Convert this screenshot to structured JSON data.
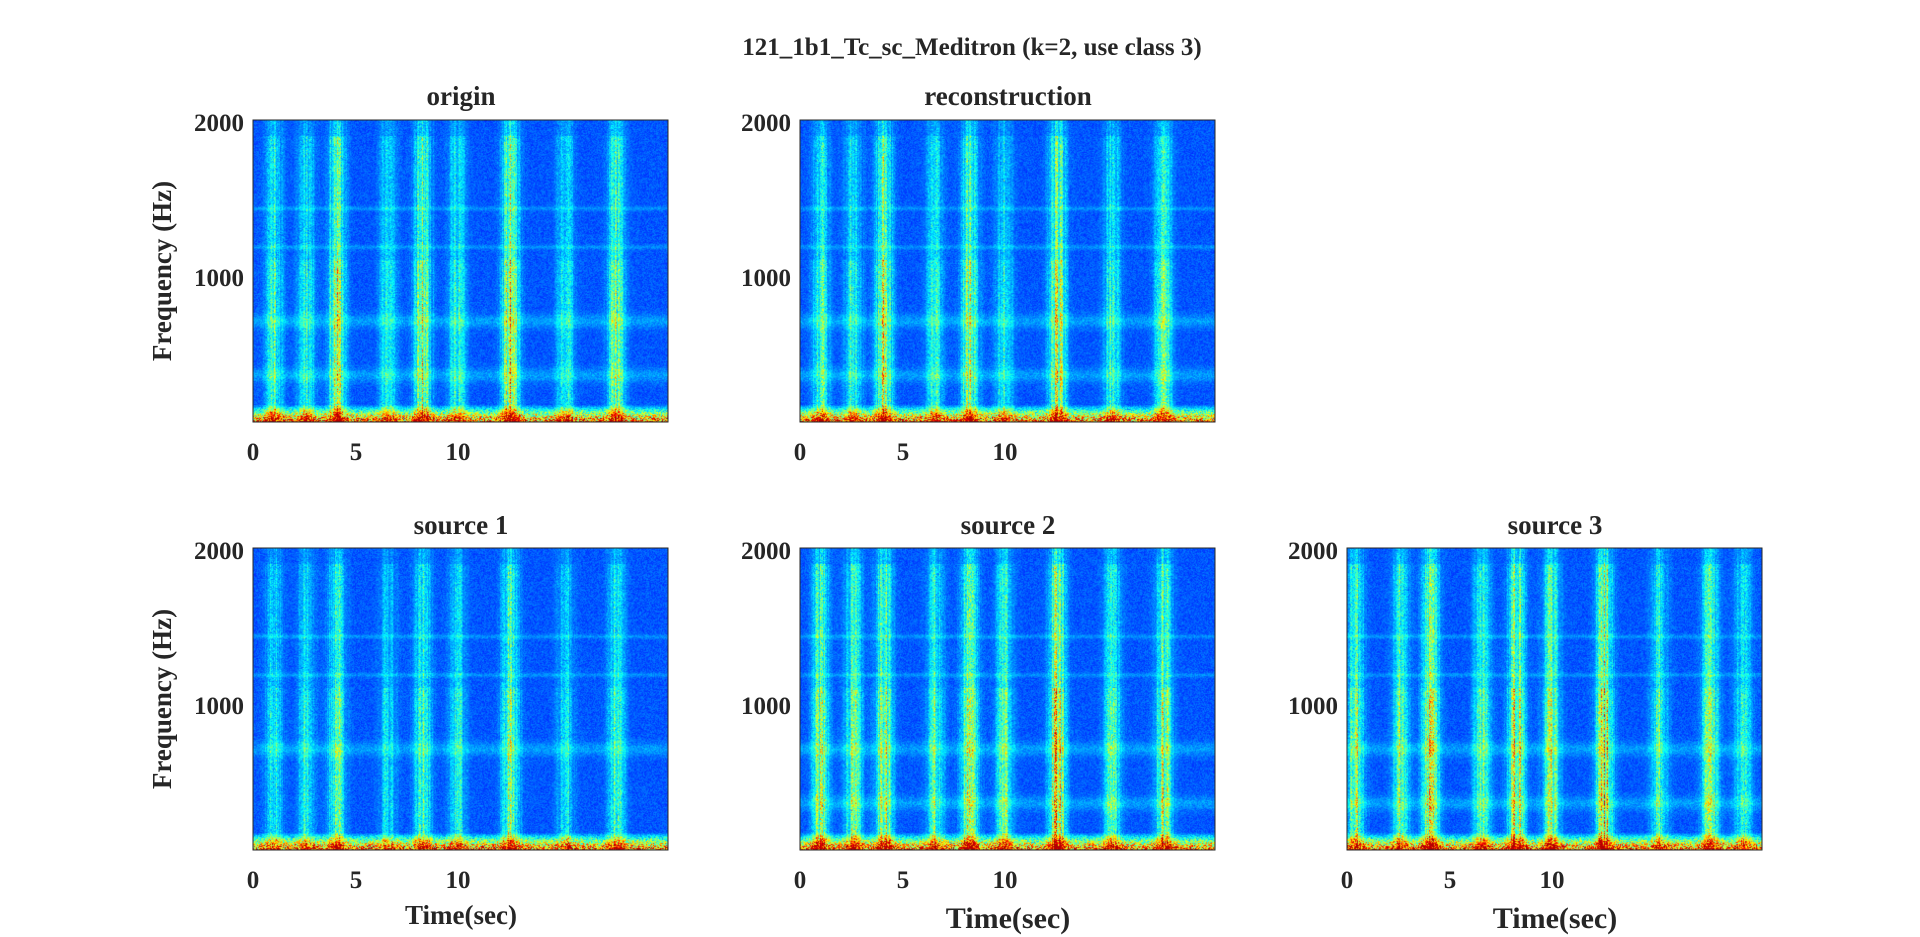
{
  "figure": {
    "suptitle": "121_1b1_Tc_sc_Meditron (k=2, use class 3)"
  },
  "chart_data": [
    {
      "type": "heatmap",
      "title": "origin",
      "ylabel": "Frequency (Hz)",
      "xlabel": "",
      "xticks": [
        "0",
        "5",
        "10"
      ],
      "xtick_values": [
        0,
        5,
        10
      ],
      "yticks": [
        "1000",
        "2000"
      ],
      "ytick_values": [
        1000,
        2000
      ],
      "xlim": [
        0,
        20.3
      ],
      "ylim": [
        50,
        2000
      ],
      "colormap": "jet",
      "seed": 11,
      "events": [
        1.0,
        2.6,
        4.1,
        6.6,
        8.3,
        10.0,
        12.6,
        15.3,
        17.8
      ],
      "strength": [
        0.6,
        0.55,
        0.85,
        0.5,
        0.8,
        0.55,
        0.95,
        0.5,
        0.7
      ],
      "bands_hz": [
        350,
        700
      ],
      "lines_hz": [
        1430,
        1180
      ]
    },
    {
      "type": "heatmap",
      "title": "reconstruction",
      "ylabel": "",
      "xlabel": "",
      "xticks": [
        "0",
        "5",
        "10"
      ],
      "xtick_values": [
        0,
        5,
        10
      ],
      "yticks": [
        "1000",
        "2000"
      ],
      "ytick_values": [
        1000,
        2000
      ],
      "xlim": [
        0,
        20.3
      ],
      "ylim": [
        50,
        2000
      ],
      "colormap": "jet",
      "seed": 23,
      "events": [
        1.0,
        2.6,
        4.1,
        6.6,
        8.3,
        10.0,
        12.6,
        15.3,
        17.8
      ],
      "strength": [
        0.6,
        0.55,
        0.85,
        0.5,
        0.8,
        0.55,
        0.95,
        0.5,
        0.7
      ],
      "bands_hz": [
        350,
        700
      ],
      "lines_hz": [
        1430,
        1180
      ]
    },
    {
      "type": "heatmap",
      "title": "source 1",
      "ylabel": "Frequency (Hz)",
      "xlabel": "Time(sec)",
      "xticks": [
        "0",
        "5",
        "10"
      ],
      "xtick_values": [
        0,
        5,
        10
      ],
      "yticks": [
        "1000",
        "2000"
      ],
      "ytick_values": [
        1000,
        2000
      ],
      "xlim": [
        0,
        20.3
      ],
      "ylim": [
        50,
        2000
      ],
      "colormap": "jet",
      "seed": 37,
      "events": [
        1.0,
        2.6,
        4.1,
        6.6,
        8.3,
        10.0,
        12.6,
        15.3,
        17.8
      ],
      "strength": [
        0.45,
        0.45,
        0.7,
        0.4,
        0.6,
        0.45,
        0.8,
        0.4,
        0.55
      ],
      "bands_hz": [
        700
      ],
      "lines_hz": [
        1430,
        1180
      ]
    },
    {
      "type": "heatmap",
      "title": "source 2",
      "ylabel": "",
      "xlabel": "Time(sec)",
      "xticks": [
        "0",
        "5",
        "10"
      ],
      "xtick_values": [
        0,
        5,
        10
      ],
      "yticks": [
        "1000",
        "2000"
      ],
      "ytick_values": [
        1000,
        2000
      ],
      "xlim": [
        0,
        20.3
      ],
      "ylim": [
        50,
        2000
      ],
      "colormap": "jet",
      "seed": 41,
      "events": [
        1.0,
        2.6,
        4.1,
        6.6,
        8.3,
        10.0,
        12.6,
        15.3,
        17.8
      ],
      "strength": [
        0.75,
        0.7,
        0.9,
        0.6,
        0.95,
        0.7,
        1.0,
        0.6,
        0.8
      ],
      "bands_hz": [
        350,
        700
      ],
      "lines_hz": [
        1430,
        1180
      ]
    },
    {
      "type": "heatmap",
      "title": "source 3",
      "ylabel": "",
      "xlabel": "Time(sec)",
      "xticks": [
        "0",
        "5",
        "10"
      ],
      "xtick_values": [
        0,
        5,
        10
      ],
      "yticks": [
        "1000",
        "2000"
      ],
      "ytick_values": [
        1000,
        2000
      ],
      "xlim": [
        0,
        20.3
      ],
      "ylim": [
        50,
        2000
      ],
      "colormap": "jet",
      "seed": 53,
      "events": [
        0.4,
        2.6,
        4.1,
        6.6,
        8.3,
        10.0,
        12.6,
        15.3,
        17.8,
        19.4
      ],
      "strength": [
        0.8,
        0.7,
        1.0,
        0.65,
        0.95,
        0.75,
        1.0,
        0.6,
        0.8,
        0.5
      ],
      "bands_hz": [
        350,
        700
      ],
      "lines_hz": [
        1430,
        1180
      ]
    }
  ]
}
